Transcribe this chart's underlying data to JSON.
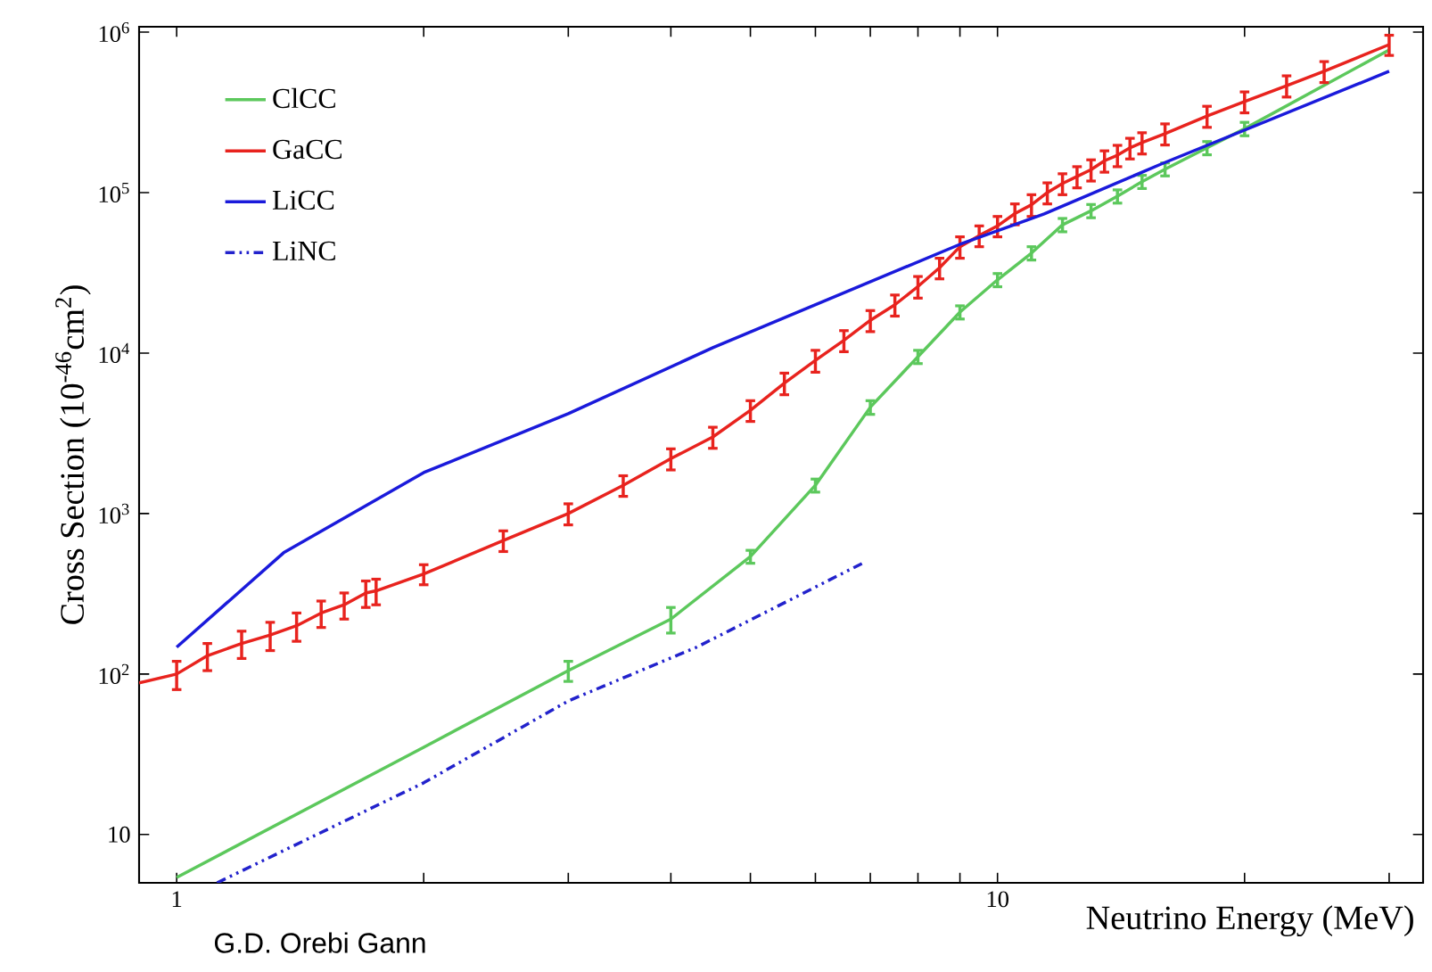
{
  "chart_data": {
    "type": "line",
    "xlabel": "Neutrino Energy (MeV)",
    "ylabel": "Cross Section (10$^{-46}$cm$^{2}$)",
    "log": "xy",
    "grid": false,
    "legend": "top left",
    "xlim": [
      0.9,
      33
    ],
    "ylim": [
      5,
      1080000
    ],
    "xticks": [
      1,
      {
        "value": 2,
        "label": null
      },
      {
        "value": 3,
        "label": null
      },
      {
        "value": 4,
        "label": null
      },
      {
        "value": 5,
        "label": null
      },
      {
        "value": 6,
        "label": null
      },
      {
        "value": 7,
        "label": null
      },
      {
        "value": 8,
        "label": null
      },
      {
        "value": 9,
        "label": null
      },
      10,
      {
        "value": 20,
        "label": null
      },
      {
        "value": 30,
        "label": null
      }
    ],
    "yticks": [
      10,
      {
        "value": 100,
        "label": "10$^{2}$"
      },
      {
        "value": 1000,
        "label": "10$^{3}$"
      },
      {
        "value": 10000,
        "label": "10$^{4}$"
      },
      {
        "value": 100000,
        "label": "10$^{5}$"
      },
      {
        "value": 1000000,
        "label": "10$^{6}$"
      }
    ],
    "annotations": [
      "G.D. Orebi Gann"
    ],
    "series": [
      {
        "name": "ClCC",
        "color": "#5cc85c",
        "x": [
          1,
          2,
          3,
          4,
          5,
          6,
          7,
          8,
          9,
          10,
          11,
          12,
          13,
          14,
          15,
          16,
          18,
          20,
          30
        ],
        "values": [
          5.4,
          35,
          105,
          220,
          540,
          1500,
          4600,
          9500,
          18000,
          28600,
          42000,
          63000,
          77000,
          95000,
          117000,
          140000,
          190000,
          250000,
          775000
        ],
        "errors": [
          null,
          null,
          15,
          40,
          50,
          140,
          450,
          900,
          1700,
          2700,
          4000,
          6000,
          7300,
          9000,
          11000,
          13000,
          18000,
          24000,
          null
        ]
      },
      {
        "name": "GaCC",
        "color": "#e8231e",
        "x": [
          0.9,
          1,
          1.09,
          1.2,
          1.3,
          1.4,
          1.5,
          1.6,
          1.7,
          1.75,
          2,
          2.5,
          3,
          3.5,
          4,
          4.5,
          5,
          5.5,
          6,
          6.5,
          7,
          7.5,
          8,
          8.5,
          9,
          9.5,
          10,
          10.5,
          11,
          11.5,
          12,
          12.5,
          13,
          13.5,
          14,
          14.5,
          15,
          16,
          18,
          20,
          22.5,
          25,
          30
        ],
        "values": [
          88,
          100,
          130,
          155,
          175,
          200,
          240,
          270,
          320,
          330,
          420,
          680,
          1000,
          1500,
          2200,
          3000,
          4400,
          6500,
          9000,
          12000,
          16000,
          20000,
          26000,
          34000,
          46000,
          54000,
          62000,
          74000,
          84000,
          100000,
          114000,
          126000,
          139000,
          158000,
          171000,
          190000,
          205000,
          233000,
          300000,
          369000,
          464000,
          570000,
          836000
        ],
        "errors": [
          null,
          20,
          25,
          30,
          35,
          40,
          45,
          50,
          60,
          60,
          60,
          100,
          150,
          220,
          330,
          450,
          650,
          1000,
          1400,
          1800,
          2400,
          3000,
          4000,
          5000,
          7000,
          8000,
          9000,
          11000,
          13000,
          15000,
          17000,
          19000,
          21000,
          24000,
          26000,
          28000,
          31000,
          35000,
          45000,
          55000,
          70000,
          85000,
          120000
        ]
      },
      {
        "name": "LiCC",
        "color": "#1a1adb",
        "x": [
          1,
          1.35,
          2,
          3,
          4.5,
          9,
          11.4,
          15.8,
          30
        ],
        "values": [
          147,
          570,
          1800,
          4190,
          10800,
          47600,
          73600,
          150000,
          570000
        ]
      },
      {
        "name": "LiNC",
        "color": "#2222cc",
        "line_style": "dashdot",
        "x": [
          1.12,
          2,
          3,
          4.3,
          6.9
        ],
        "values": [
          5,
          21,
          68,
          147,
          500
        ]
      }
    ]
  }
}
